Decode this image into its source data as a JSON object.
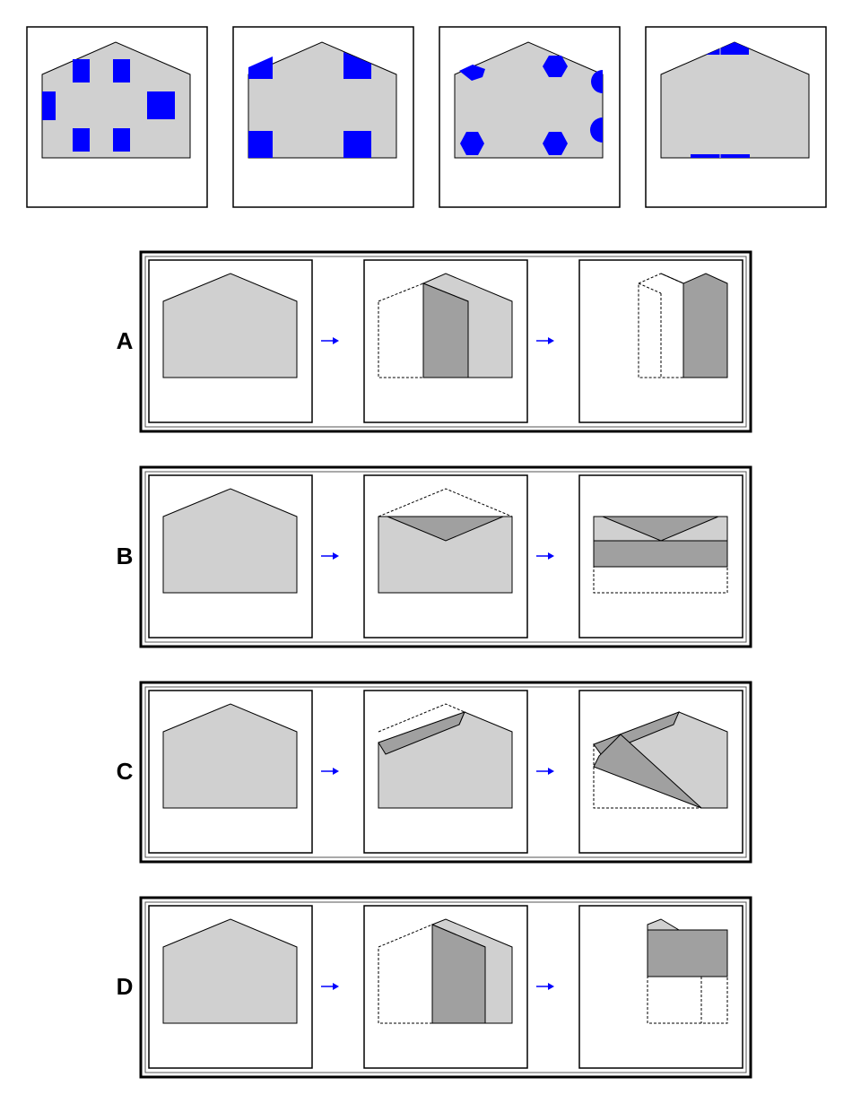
{
  "colors": {
    "paper": "#d0d0d0",
    "fold": "#a0a0a0",
    "hole": "#0000ff",
    "arrow": "#0000ff",
    "outline": "#000000",
    "background": "#ffffff"
  },
  "top_panels": [
    {
      "name": "unfolded-result-1",
      "hole_shape": "square"
    },
    {
      "name": "unfolded-result-2",
      "hole_shape": "square"
    },
    {
      "name": "unfolded-result-3",
      "hole_shape": "hexagon"
    },
    {
      "name": "unfolded-result-4",
      "hole_shape": "square"
    }
  ],
  "options": [
    {
      "label": "A"
    },
    {
      "label": "B"
    },
    {
      "label": "C"
    },
    {
      "label": "D"
    }
  ]
}
